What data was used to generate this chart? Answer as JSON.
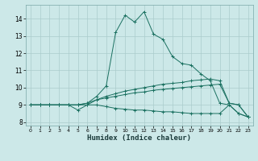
{
  "xlabel": "Humidex (Indice chaleur)",
  "bg_color": "#cce8e8",
  "grid_color": "#aacccc",
  "line_color": "#1a7060",
  "xlim": [
    -0.5,
    23.5
  ],
  "ylim": [
    7.8,
    14.8
  ],
  "yticks": [
    8,
    9,
    10,
    11,
    12,
    13,
    14
  ],
  "xticks": [
    0,
    1,
    2,
    3,
    4,
    5,
    6,
    7,
    8,
    9,
    10,
    11,
    12,
    13,
    14,
    15,
    16,
    17,
    18,
    19,
    20,
    21,
    22,
    23
  ],
  "curve1_x": [
    0,
    1,
    2,
    3,
    4,
    5,
    6,
    7,
    8,
    9,
    10,
    11,
    12,
    13,
    14,
    15,
    16,
    17,
    18,
    19,
    20,
    21,
    22,
    23
  ],
  "curve1_y": [
    9.0,
    9.0,
    9.0,
    9.0,
    9.0,
    9.0,
    9.1,
    9.5,
    10.1,
    13.2,
    14.2,
    13.8,
    14.4,
    13.1,
    12.8,
    11.8,
    11.4,
    11.3,
    10.8,
    10.4,
    9.1,
    9.0,
    8.5,
    8.3
  ],
  "curve2_x": [
    0,
    1,
    2,
    3,
    4,
    5,
    6,
    7,
    8,
    9,
    10,
    11,
    12,
    13,
    14,
    15,
    16,
    17,
    18,
    19,
    20,
    21,
    22,
    23
  ],
  "curve2_y": [
    9.0,
    9.0,
    9.0,
    9.0,
    9.0,
    8.7,
    9.0,
    9.3,
    9.5,
    9.65,
    9.8,
    9.9,
    10.0,
    10.1,
    10.2,
    10.25,
    10.3,
    10.4,
    10.45,
    10.5,
    10.4,
    9.1,
    9.0,
    8.3
  ],
  "curve3_x": [
    0,
    1,
    2,
    3,
    4,
    5,
    6,
    7,
    8,
    9,
    10,
    11,
    12,
    13,
    14,
    15,
    16,
    17,
    18,
    19,
    20,
    21,
    22,
    23
  ],
  "curve3_y": [
    9.0,
    9.0,
    9.0,
    9.0,
    9.0,
    9.0,
    9.1,
    9.3,
    9.4,
    9.5,
    9.6,
    9.7,
    9.75,
    9.85,
    9.9,
    9.95,
    10.0,
    10.05,
    10.1,
    10.15,
    10.2,
    9.1,
    9.0,
    8.3
  ],
  "curve4_x": [
    0,
    1,
    2,
    3,
    4,
    5,
    6,
    7,
    8,
    9,
    10,
    11,
    12,
    13,
    14,
    15,
    16,
    17,
    18,
    19,
    20,
    21,
    22,
    23
  ],
  "curve4_y": [
    9.0,
    9.0,
    9.0,
    9.0,
    9.0,
    9.0,
    9.0,
    9.0,
    8.9,
    8.8,
    8.75,
    8.7,
    8.7,
    8.65,
    8.6,
    8.6,
    8.55,
    8.5,
    8.5,
    8.5,
    8.5,
    9.0,
    8.5,
    8.3
  ]
}
